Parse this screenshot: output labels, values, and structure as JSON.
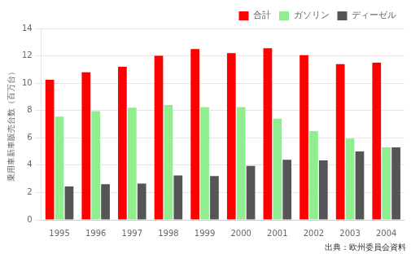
{
  "chart_data": {
    "type": "bar",
    "categories": [
      "1995",
      "1996",
      "1997",
      "1998",
      "1999",
      "2000",
      "2001",
      "2002",
      "2003",
      "2004"
    ],
    "series": [
      {
        "name": "合計",
        "color": "#FF0000",
        "values": [
          10.25,
          10.8,
          11.2,
          12.0,
          12.5,
          12.2,
          12.55,
          12.05,
          11.4,
          11.5
        ]
      },
      {
        "name": "ガソリン",
        "color": "#90EE90",
        "values": [
          7.55,
          7.95,
          8.2,
          8.4,
          8.25,
          8.25,
          7.4,
          6.5,
          5.95,
          5.3
        ]
      },
      {
        "name": "ディーゼル",
        "color": "#555555",
        "values": [
          2.45,
          2.6,
          2.65,
          3.25,
          3.2,
          3.95,
          4.4,
          4.35,
          5.0,
          5.3
        ]
      }
    ],
    "y_label": "乗用車新車販売台数（百万台）",
    "annotation": "出典：欧州委員会資料",
    "ylim": [
      0,
      14
    ],
    "yticks": [
      0,
      2,
      4,
      6,
      8,
      10,
      12,
      14
    ],
    "grid": true,
    "legend": "upper right"
  }
}
